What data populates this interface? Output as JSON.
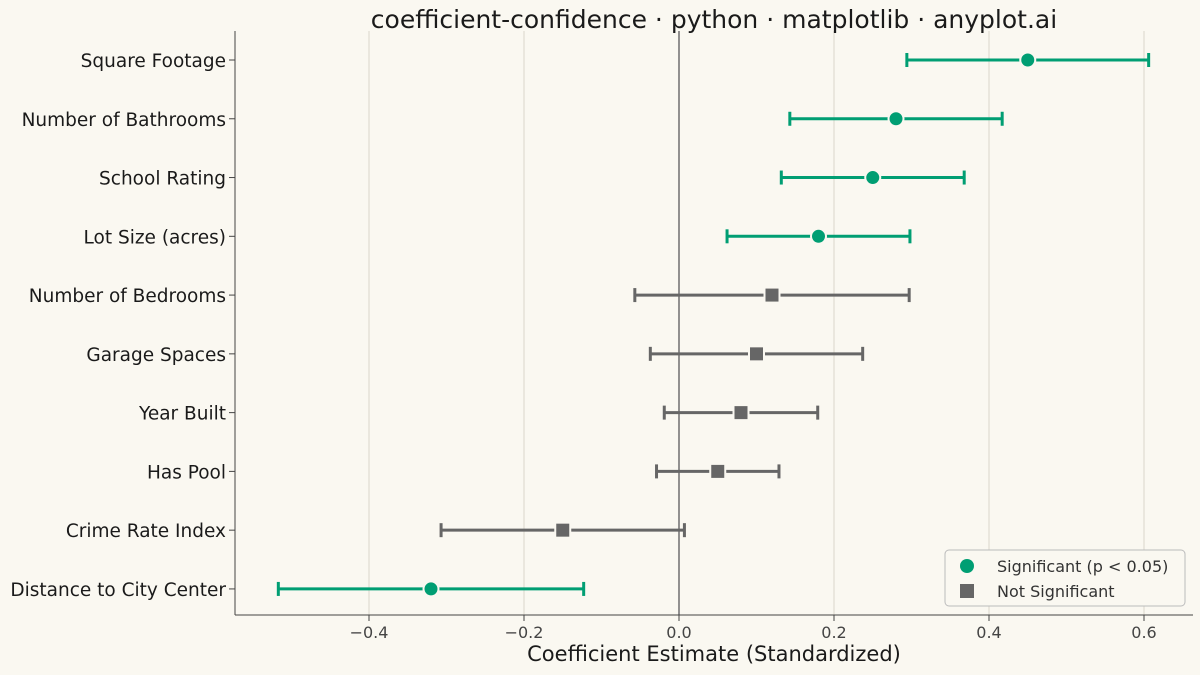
{
  "chart_data": {
    "type": "scatter",
    "title": "coefficient-confidence · python · matplotlib · anyplot.ai",
    "xlabel": "Coefficient Estimate (Standardized)",
    "ylabel": "",
    "xlim": [
      -0.57,
      0.66
    ],
    "xticks": [
      -0.4,
      -0.2,
      0.0,
      0.2,
      0.4,
      0.6
    ],
    "xtick_labels": [
      "−0.4",
      "−0.2",
      "0.0",
      "0.2",
      "0.4",
      "0.6"
    ],
    "grid": "vertical",
    "reference_line_x": 0,
    "legend": {
      "placement": "lower-right",
      "entries": [
        {
          "label": "Significant (p < 0.05)",
          "marker": "circle",
          "color": "#009E73"
        },
        {
          "label": "Not Significant",
          "marker": "square",
          "color": "#666666"
        }
      ]
    },
    "colors": {
      "significant": "#009E73",
      "not_significant": "#666666",
      "background": "#FAF8F1"
    },
    "categories": [
      "Square Footage",
      "Number of Bathrooms",
      "School Rating",
      "Lot Size (acres)",
      "Number of Bedrooms",
      "Garage Spaces",
      "Year Built",
      "Has Pool",
      "Crime Rate Index",
      "Distance to City Center"
    ],
    "points": [
      {
        "label": "Square Footage",
        "estimate": 0.45,
        "ci_low": 0.294,
        "ci_high": 0.606,
        "significant": true
      },
      {
        "label": "Number of Bathrooms",
        "estimate": 0.28,
        "ci_low": 0.143,
        "ci_high": 0.417,
        "significant": true
      },
      {
        "label": "School Rating",
        "estimate": 0.25,
        "ci_low": 0.132,
        "ci_high": 0.368,
        "significant": true
      },
      {
        "label": "Lot Size (acres)",
        "estimate": 0.18,
        "ci_low": 0.062,
        "ci_high": 0.298,
        "significant": true
      },
      {
        "label": "Number of Bedrooms",
        "estimate": 0.12,
        "ci_low": -0.057,
        "ci_high": 0.297,
        "significant": false
      },
      {
        "label": "Garage Spaces",
        "estimate": 0.1,
        "ci_low": -0.037,
        "ci_high": 0.237,
        "significant": false
      },
      {
        "label": "Year Built",
        "estimate": 0.08,
        "ci_low": -0.019,
        "ci_high": 0.179,
        "significant": false
      },
      {
        "label": "Has Pool",
        "estimate": 0.05,
        "ci_low": -0.029,
        "ci_high": 0.129,
        "significant": false
      },
      {
        "label": "Crime Rate Index",
        "estimate": -0.15,
        "ci_low": -0.307,
        "ci_high": 0.007,
        "significant": false
      },
      {
        "label": "Distance to City Center",
        "estimate": -0.32,
        "ci_low": -0.517,
        "ci_high": -0.123,
        "significant": true
      }
    ]
  }
}
